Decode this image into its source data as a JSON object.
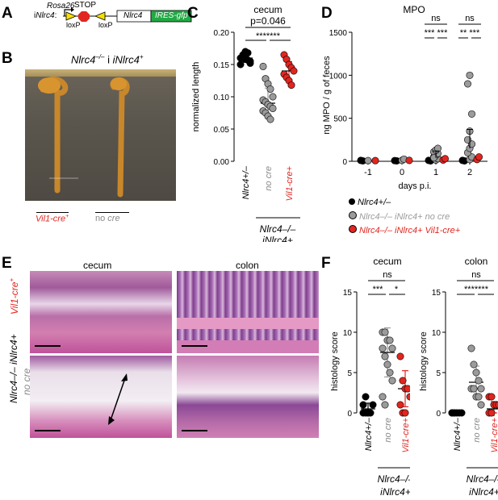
{
  "panels": {
    "A": {
      "letter": "A",
      "prefix": "i",
      "gene": "Nlrc4",
      "colon": ":",
      "rosa": "Rosa26",
      "stop": "STOP",
      "loxp1": "loxP",
      "loxp2": "loxP",
      "box_nlrc4": "Nlrc4",
      "box_ires": "IRES-gfp"
    },
    "B": {
      "letter": "B",
      "title_a": "Nlrc4",
      "title_sup": "–/–",
      "title_b": " iNlrc4",
      "title_sup2": "+",
      "label_left": "Vil1-cre",
      "label_left_sup": "+",
      "label_right_a": "no ",
      "label_right_b": "cre"
    },
    "C": {
      "letter": "C",
      "title": "cecum",
      "pvalue": "p=0.046",
      "stars": "*******",
      "ylabel": "normalized length",
      "xticks": [
        "Nlrc4+/–",
        "no cre",
        "Vil1-cre+"
      ],
      "group_label_a": "Nlrc4–/–",
      "group_label_b": "iNlrc4+"
    },
    "D": {
      "letter": "D",
      "title": "MPO",
      "ylabel": "ng MPO / g of feces",
      "xlabel": "days p.i.",
      "ns1": "ns",
      "ns2": "ns",
      "stars1": "*** ***",
      "stars2": "** ***",
      "legend": [
        {
          "text": "Nlrc4+/–",
          "color": "#000000"
        },
        {
          "text": "Nlrc4–/– iNlrc4+ no cre",
          "color": "#9b9b9b"
        },
        {
          "text": "Nlrc4–/– iNlrc4+ Vil1-cre+",
          "color": "#e2261f"
        }
      ]
    },
    "E": {
      "letter": "E",
      "col1": "cecum",
      "col2": "colon",
      "row1_a": "Vil1-cre",
      "row1_sup": "+",
      "row_genotype": "Nlrc4–/– iNlrc4+",
      "row2": "no cre"
    },
    "F": {
      "letter": "F",
      "title1": "cecum",
      "title2": "colon",
      "ns1": "ns",
      "ns2": "ns",
      "stars1a": "***",
      "stars1b": "*",
      "stars2": "*******",
      "ylabel": "histology score",
      "xticks": [
        "Nlrc4+/–",
        "no cre",
        "Vil1-cre+"
      ],
      "group_a": "Nlrc4–/–",
      "group_b": "iNlrc4+"
    }
  },
  "chart_data": [
    {
      "type": "scatter",
      "title": "cecum",
      "ylabel": "normalized length",
      "ylim": [
        0,
        0.2
      ],
      "yticks": [
        0.0,
        0.05,
        0.1,
        0.15,
        0.2
      ],
      "categories": [
        "Nlrc4+/–",
        "no cre",
        "Vil1-cre+"
      ],
      "series": [
        {
          "name": "Nlrc4+/–",
          "color": "#000000",
          "values": [
            0.16,
            0.165,
            0.158,
            0.168,
            0.155,
            0.15,
            0.162,
            0.17,
            0.157,
            0.152
          ]
        },
        {
          "name": "no cre",
          "color": "#9b9b9b",
          "values": [
            0.147,
            0.128,
            0.12,
            0.112,
            0.1,
            0.095,
            0.092,
            0.088,
            0.085,
            0.082,
            0.078,
            0.075,
            0.07,
            0.065
          ]
        },
        {
          "name": "Vil1-cre+",
          "color": "#e2261f",
          "values": [
            0.165,
            0.158,
            0.15,
            0.145,
            0.14,
            0.135,
            0.13,
            0.125,
            0.118
          ]
        }
      ],
      "means": [
        0.16,
        0.09,
        0.14
      ]
    },
    {
      "type": "scatter",
      "title": "MPO",
      "ylabel": "ng MPO / g of feces",
      "xlabel": "days p.i.",
      "ylim": [
        0,
        1500
      ],
      "yticks": [
        0,
        500,
        1000,
        1500
      ],
      "x": [
        -1,
        0,
        1,
        2
      ],
      "series": [
        {
          "name": "Nlrc4+/–",
          "color": "#000000",
          "points": [
            [
              -1,
              10
            ],
            [
              -1,
              5
            ],
            [
              0,
              8
            ],
            [
              0,
              5
            ],
            [
              1,
              10
            ],
            [
              1,
              5
            ],
            [
              2,
              10
            ],
            [
              2,
              5
            ]
          ]
        },
        {
          "name": "no cre",
          "color": "#9b9b9b",
          "points": [
            [
              -1,
              8
            ],
            [
              0,
              10
            ],
            [
              0,
              25
            ],
            [
              1,
              15
            ],
            [
              1,
              30
            ],
            [
              1,
              50
            ],
            [
              1,
              70
            ],
            [
              1,
              90
            ],
            [
              1,
              110
            ],
            [
              1,
              130
            ],
            [
              1,
              150
            ],
            [
              1,
              40
            ],
            [
              2,
              20
            ],
            [
              2,
              50
            ],
            [
              2,
              100
            ],
            [
              2,
              150
            ],
            [
              2,
              200
            ],
            [
              2,
              250
            ],
            [
              2,
              350
            ],
            [
              2,
              550
            ],
            [
              2,
              900
            ],
            [
              2,
              1000
            ]
          ]
        },
        {
          "name": "Vil1-cre+",
          "color": "#e2261f",
          "points": [
            [
              -1,
              8
            ],
            [
              0,
              10
            ],
            [
              1,
              15
            ],
            [
              1,
              30
            ],
            [
              2,
              20
            ],
            [
              2,
              50
            ]
          ]
        }
      ]
    },
    {
      "type": "scatter",
      "title": "cecum",
      "ylabel": "histology score",
      "ylim": [
        0,
        15
      ],
      "yticks": [
        0,
        5,
        10,
        15
      ],
      "categories": [
        "Nlrc4+/–",
        "no cre",
        "Vil1-cre+"
      ],
      "series": [
        {
          "name": "Nlrc4+/–",
          "color": "#000000",
          "values": [
            0,
            0,
            0,
            0,
            1,
            1,
            2,
            0
          ]
        },
        {
          "name": "no cre",
          "color": "#9b9b9b",
          "values": [
            10,
            10,
            9,
            9,
            8,
            8,
            7,
            6,
            5,
            4,
            2,
            1
          ]
        },
        {
          "name": "Vil1-cre+",
          "color": "#e2261f",
          "values": [
            7,
            4,
            3,
            3,
            2,
            1,
            0,
            0
          ]
        }
      ],
      "means": [
        0.5,
        7.5,
        3
      ]
    },
    {
      "type": "scatter",
      "title": "colon",
      "ylabel": "histology score",
      "ylim": [
        0,
        15
      ],
      "yticks": [
        0,
        5,
        10,
        15
      ],
      "categories": [
        "Nlrc4+/–",
        "no cre",
        "Vil1-cre+"
      ],
      "series": [
        {
          "name": "Nlrc4+/–",
          "color": "#000000",
          "values": [
            0,
            0,
            0,
            0,
            0,
            0,
            0
          ]
        },
        {
          "name": "no cre",
          "color": "#9b9b9b",
          "values": [
            8,
            6,
            5,
            4,
            3,
            3,
            3,
            2,
            2,
            1
          ]
        },
        {
          "name": "Vil1-cre+",
          "color": "#e2261f",
          "values": [
            2,
            2,
            1,
            1,
            1,
            0,
            0
          ]
        }
      ],
      "means": [
        0,
        3.8,
        0.5
      ]
    }
  ]
}
